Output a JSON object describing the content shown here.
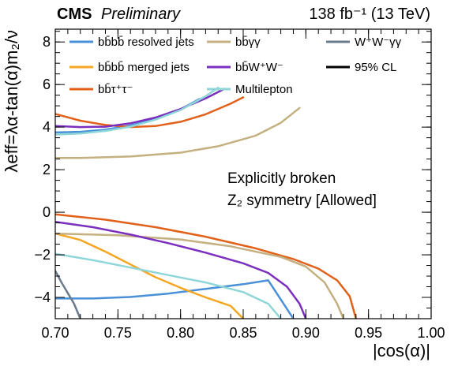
{
  "chart_data": {
    "type": "line",
    "header": {
      "experiment": "CMS",
      "status": "Preliminary",
      "luminosity": "138 fb⁻¹ (13 TeV)"
    },
    "xlabel": "|cos(α)|",
    "ylabel": "λeff=λα-tan(α)m₂/ν",
    "xlim": [
      0.7,
      1.0
    ],
    "ylim": [
      -5,
      8.6
    ],
    "x_ticks": [
      "0.70",
      "0.75",
      "0.80",
      "0.85",
      "0.90",
      "0.95",
      "1.00"
    ],
    "y_ticks": [
      "−4",
      "−2",
      "0",
      "2",
      "4",
      "6",
      "8"
    ],
    "grid": false,
    "legend_position": "top",
    "annotation_lines": [
      "Explicitly broken",
      "Z₂ symmetry [Allowed]"
    ],
    "legend_extra": "95% CL",
    "series": [
      {
        "name": "bb̄bb̄ resolved jets",
        "color": "#4a90d9",
        "segments": [
          [
            [
              0.7,
              3.75
            ],
            [
              0.72,
              3.78
            ],
            [
              0.74,
              3.88
            ],
            [
              0.76,
              4.08
            ],
            [
              0.78,
              4.38
            ],
            [
              0.8,
              4.83
            ],
            [
              0.815,
              5.32
            ]
          ],
          [
            [
              0.7,
              -4.05
            ],
            [
              0.73,
              -4.05
            ],
            [
              0.76,
              -3.98
            ],
            [
              0.79,
              -3.82
            ],
            [
              0.82,
              -3.6
            ],
            [
              0.85,
              -3.38
            ],
            [
              0.87,
              -3.2
            ],
            [
              0.89,
              -5.0
            ]
          ]
        ]
      },
      {
        "name": "bb̄bb̄ merged jets",
        "color": "#f5a623",
        "segments": [
          [
            [
              0.7,
              -1.0
            ],
            [
              0.72,
              -1.3
            ],
            [
              0.74,
              -1.85
            ],
            [
              0.76,
              -2.45
            ],
            [
              0.78,
              -3.05
            ],
            [
              0.8,
              -3.55
            ],
            [
              0.82,
              -4.0
            ],
            [
              0.84,
              -4.4
            ],
            [
              0.85,
              -5.0
            ]
          ]
        ]
      },
      {
        "name": "bb̄τ⁺τ⁻",
        "color": "#e2611a",
        "segments": [
          [
            [
              0.7,
              4.62
            ],
            [
              0.72,
              4.3
            ],
            [
              0.74,
              4.1
            ],
            [
              0.76,
              4.0
            ],
            [
              0.78,
              4.05
            ],
            [
              0.8,
              4.25
            ],
            [
              0.82,
              4.6
            ],
            [
              0.84,
              5.1
            ],
            [
              0.85,
              5.4
            ]
          ],
          [
            [
              0.7,
              -0.1
            ],
            [
              0.74,
              -0.35
            ],
            [
              0.78,
              -0.7
            ],
            [
              0.82,
              -1.15
            ],
            [
              0.86,
              -1.7
            ],
            [
              0.89,
              -2.2
            ],
            [
              0.91,
              -2.65
            ],
            [
              0.925,
              -3.2
            ],
            [
              0.935,
              -3.95
            ],
            [
              0.94,
              -5.0
            ]
          ]
        ]
      },
      {
        "name": "bb̄γγ",
        "color": "#c4b080",
        "segments": [
          [
            [
              0.7,
              2.55
            ],
            [
              0.72,
              2.55
            ],
            [
              0.76,
              2.62
            ],
            [
              0.8,
              2.8
            ],
            [
              0.83,
              3.1
            ],
            [
              0.86,
              3.6
            ],
            [
              0.88,
              4.2
            ],
            [
              0.895,
              4.9
            ]
          ],
          [
            [
              0.7,
              -1.0
            ],
            [
              0.75,
              -1.08
            ],
            [
              0.8,
              -1.28
            ],
            [
              0.84,
              -1.6
            ],
            [
              0.88,
              -2.1
            ],
            [
              0.9,
              -2.55
            ],
            [
              0.915,
              -3.3
            ],
            [
              0.925,
              -4.3
            ],
            [
              0.93,
              -5.0
            ]
          ]
        ]
      },
      {
        "name": "bb̄W⁺W⁻",
        "color": "#7b2fbe",
        "segments": [
          [
            [
              0.7,
              4.05
            ],
            [
              0.72,
              4.0
            ],
            [
              0.74,
              4.02
            ],
            [
              0.76,
              4.18
            ],
            [
              0.78,
              4.45
            ],
            [
              0.8,
              4.85
            ],
            [
              0.82,
              5.35
            ],
            [
              0.835,
              5.8
            ]
          ],
          [
            [
              0.7,
              -0.45
            ],
            [
              0.73,
              -0.7
            ],
            [
              0.76,
              -1.05
            ],
            [
              0.79,
              -1.45
            ],
            [
              0.82,
              -1.9
            ],
            [
              0.85,
              -2.4
            ],
            [
              0.87,
              -2.85
            ],
            [
              0.885,
              -3.5
            ],
            [
              0.895,
              -4.3
            ],
            [
              0.9,
              -5.0
            ]
          ]
        ]
      },
      {
        "name": "Multilepton",
        "color": "#8ed6d8",
        "segments": [
          [
            [
              0.7,
              3.65
            ],
            [
              0.72,
              3.7
            ],
            [
              0.74,
              3.82
            ],
            [
              0.76,
              4.02
            ],
            [
              0.78,
              4.35
            ],
            [
              0.8,
              4.8
            ],
            [
              0.82,
              5.45
            ],
            [
              0.83,
              5.85
            ]
          ],
          [
            [
              0.7,
              -1.95
            ],
            [
              0.73,
              -2.25
            ],
            [
              0.76,
              -2.6
            ],
            [
              0.79,
              -2.95
            ],
            [
              0.82,
              -3.3
            ],
            [
              0.85,
              -3.75
            ],
            [
              0.87,
              -4.3
            ],
            [
              0.88,
              -5.0
            ]
          ]
        ]
      },
      {
        "name": "W⁺W⁻γγ",
        "color": "#6a7a8c",
        "segments": [
          [
            [
              0.7,
              -2.75
            ],
            [
              0.705,
              -3.3
            ],
            [
              0.71,
              -3.8
            ],
            [
              0.715,
              -4.3
            ],
            [
              0.72,
              -5.0
            ]
          ]
        ]
      }
    ]
  }
}
